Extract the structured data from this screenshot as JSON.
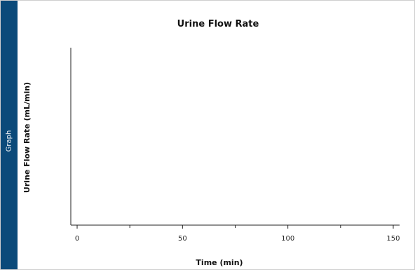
{
  "side_tab": {
    "label": "Graph"
  },
  "chart_data": {
    "type": "line",
    "title": "Urine Flow Rate",
    "xlabel": "Time (min)",
    "ylabel": "Urine Flow Rate (mL/min)",
    "xlim": [
      -3,
      153
    ],
    "x_ticks": [
      0,
      50,
      100,
      150
    ],
    "x_minor_ticks": [
      25,
      75,
      125
    ],
    "series": [],
    "grid": false
  }
}
